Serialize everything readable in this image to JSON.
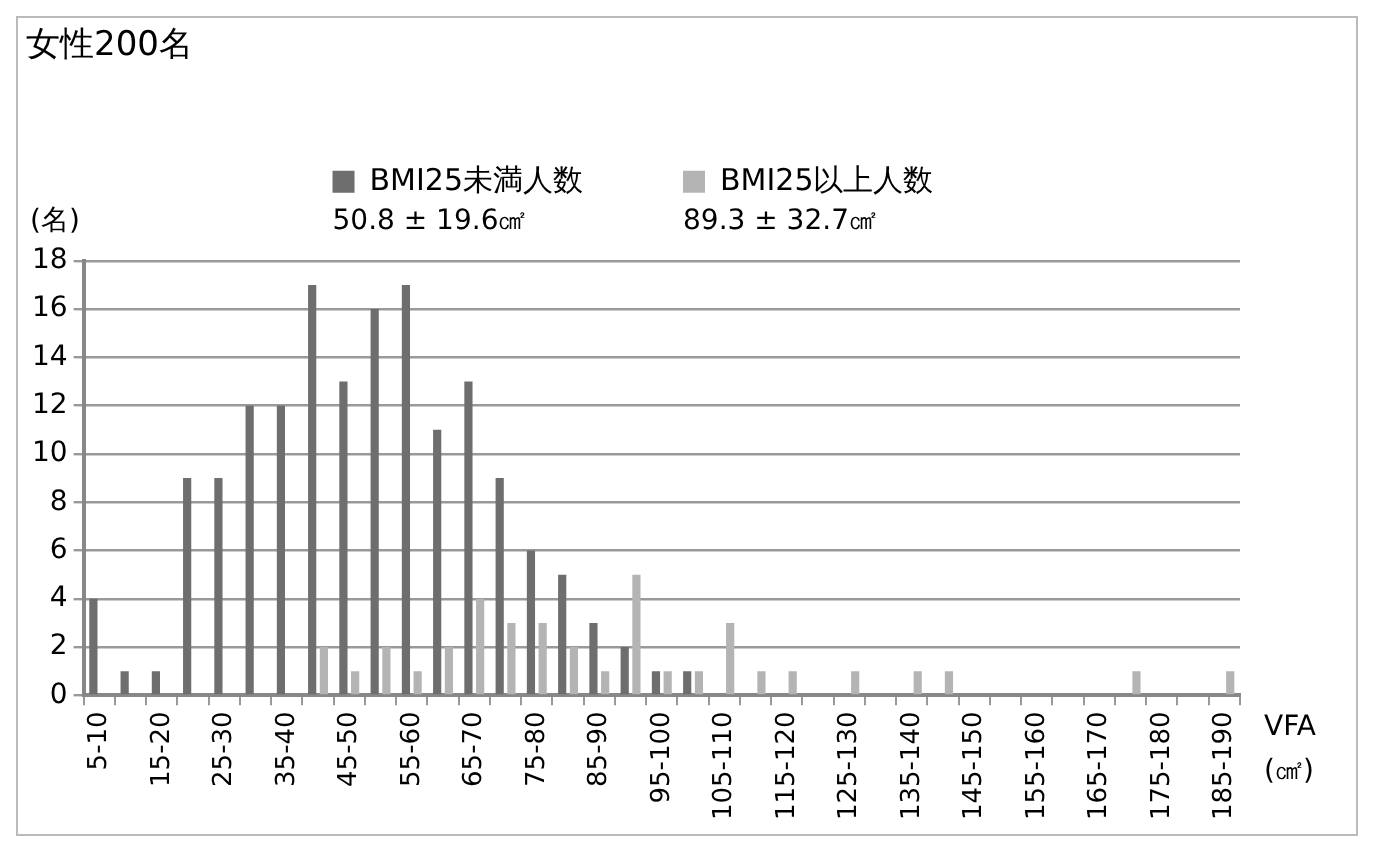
{
  "chart_data": {
    "type": "bar",
    "title": "女性200名",
    "ylabel": "(名)",
    "xlabel": "VFA (㎠)",
    "categories": [
      "5-10",
      null,
      "15-20",
      null,
      "25-30",
      null,
      "35-40",
      null,
      "45-50",
      null,
      "55-60",
      null,
      "65-70",
      null,
      "75-80",
      null,
      "85-90",
      null,
      "95-100",
      null,
      "105-110",
      null,
      "115-120",
      null,
      "125-130",
      null,
      "135-140",
      null,
      "145-150",
      null,
      "155-160",
      null,
      "165-170",
      null,
      "175-180",
      null,
      "185-190"
    ],
    "series": [
      {
        "name": "BMI25未満人数",
        "color": "#6e6e6e",
        "values": [
          4,
          1,
          1,
          9,
          9,
          12,
          12,
          17,
          13,
          16,
          17,
          11,
          13,
          9,
          6,
          5,
          3,
          2,
          1,
          1,
          0,
          0,
          0,
          0,
          0,
          0,
          0,
          0,
          0,
          0,
          0,
          0,
          0,
          0,
          0,
          0,
          0
        ]
      },
      {
        "name": "BMI25以上人数",
        "color": "#b4b4b4",
        "values": [
          0,
          0,
          0,
          0,
          0,
          0,
          0,
          2,
          1,
          2,
          1,
          2,
          4,
          3,
          3,
          2,
          1,
          5,
          1,
          1,
          3,
          1,
          1,
          0,
          1,
          0,
          1,
          1,
          0,
          0,
          0,
          0,
          0,
          1,
          0,
          0,
          1
        ]
      }
    ],
    "annotations": [
      "50.8 ± 19.6㎠",
      "89.3 ± 32.7㎠"
    ],
    "ylim": [
      0,
      18
    ],
    "yticks": [
      0,
      2,
      4,
      6,
      8,
      10,
      12,
      14,
      16,
      18
    ],
    "grid": "y",
    "legend": "top"
  }
}
